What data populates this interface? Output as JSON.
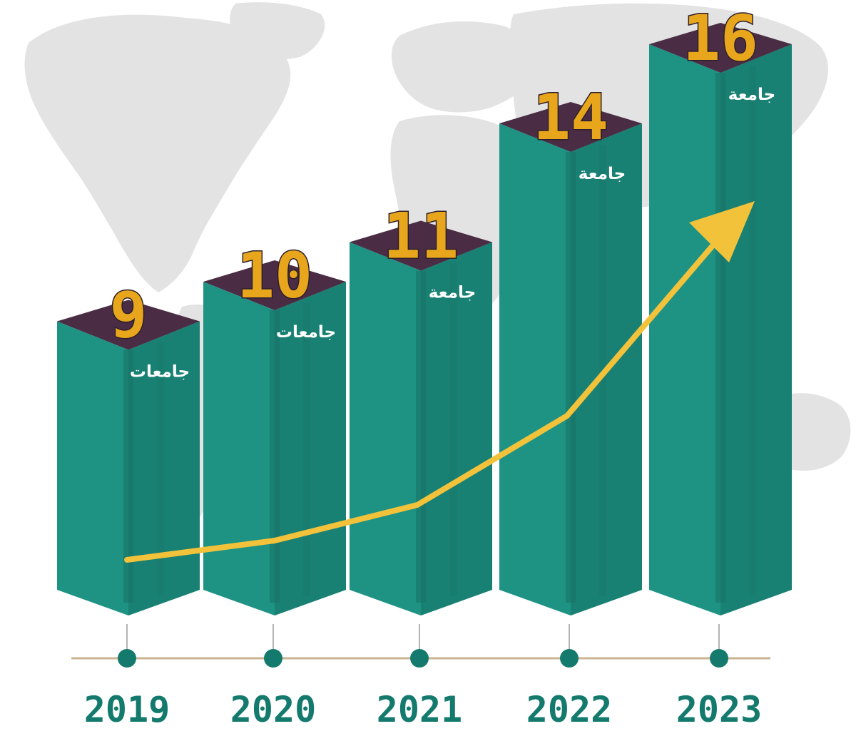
{
  "chart_data": {
    "type": "bar",
    "categories": [
      "2019",
      "2020",
      "2021",
      "2022",
      "2023"
    ],
    "values": [
      9,
      10,
      11,
      14,
      16
    ],
    "bar_labels": [
      "جامعات",
      "جامعات",
      "جامعة",
      "جامعة",
      "جامعة"
    ],
    "title": "",
    "xlabel": "",
    "ylabel": "",
    "trend_arrow": true,
    "background": "world-map-silhouette",
    "grid": false,
    "legend": "none"
  },
  "colors": {
    "bar_front": "#1e9384",
    "bar_side": "#167366",
    "bar_top": "#4a2d44",
    "value_text": "#E7A61C",
    "unit_text": "#ffffff",
    "trend_arrow": "#F2C23A",
    "timeline": "#c9b48f",
    "timeline_dot": "#157a6e",
    "year_text": "#157a6e",
    "map": "#e2e2e2"
  }
}
